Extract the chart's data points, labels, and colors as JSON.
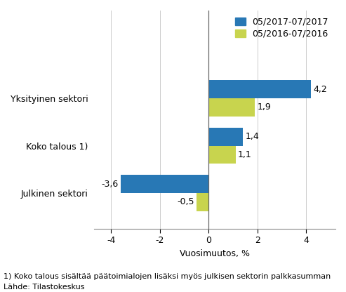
{
  "categories": [
    "Yksityinen sektori",
    "Koko talous 1)",
    "Julkinen sektori"
  ],
  "series_2017": [
    4.2,
    1.4,
    -3.6
  ],
  "series_2016": [
    1.9,
    1.1,
    -0.5
  ],
  "color_2017": "#2878b5",
  "color_2016": "#c8d44e",
  "legend_2017": "05/2017-07/2017",
  "legend_2016": "05/2016-07/2016",
  "xlabel": "Vuosimuutos, %",
  "xlim": [
    -4.7,
    5.2
  ],
  "xticks": [
    -4,
    -2,
    0,
    2,
    4
  ],
  "footnote1": "1) Koko talous sisältää päätoimialojen lisäksi myös julkisen sektorin palkkasumman",
  "footnote2": "Lähde: Tilastokeskus",
  "bar_width": 0.38,
  "label_fontsize": 9,
  "tick_fontsize": 9,
  "legend_fontsize": 9,
  "xlabel_fontsize": 9,
  "footnote_fontsize": 8
}
